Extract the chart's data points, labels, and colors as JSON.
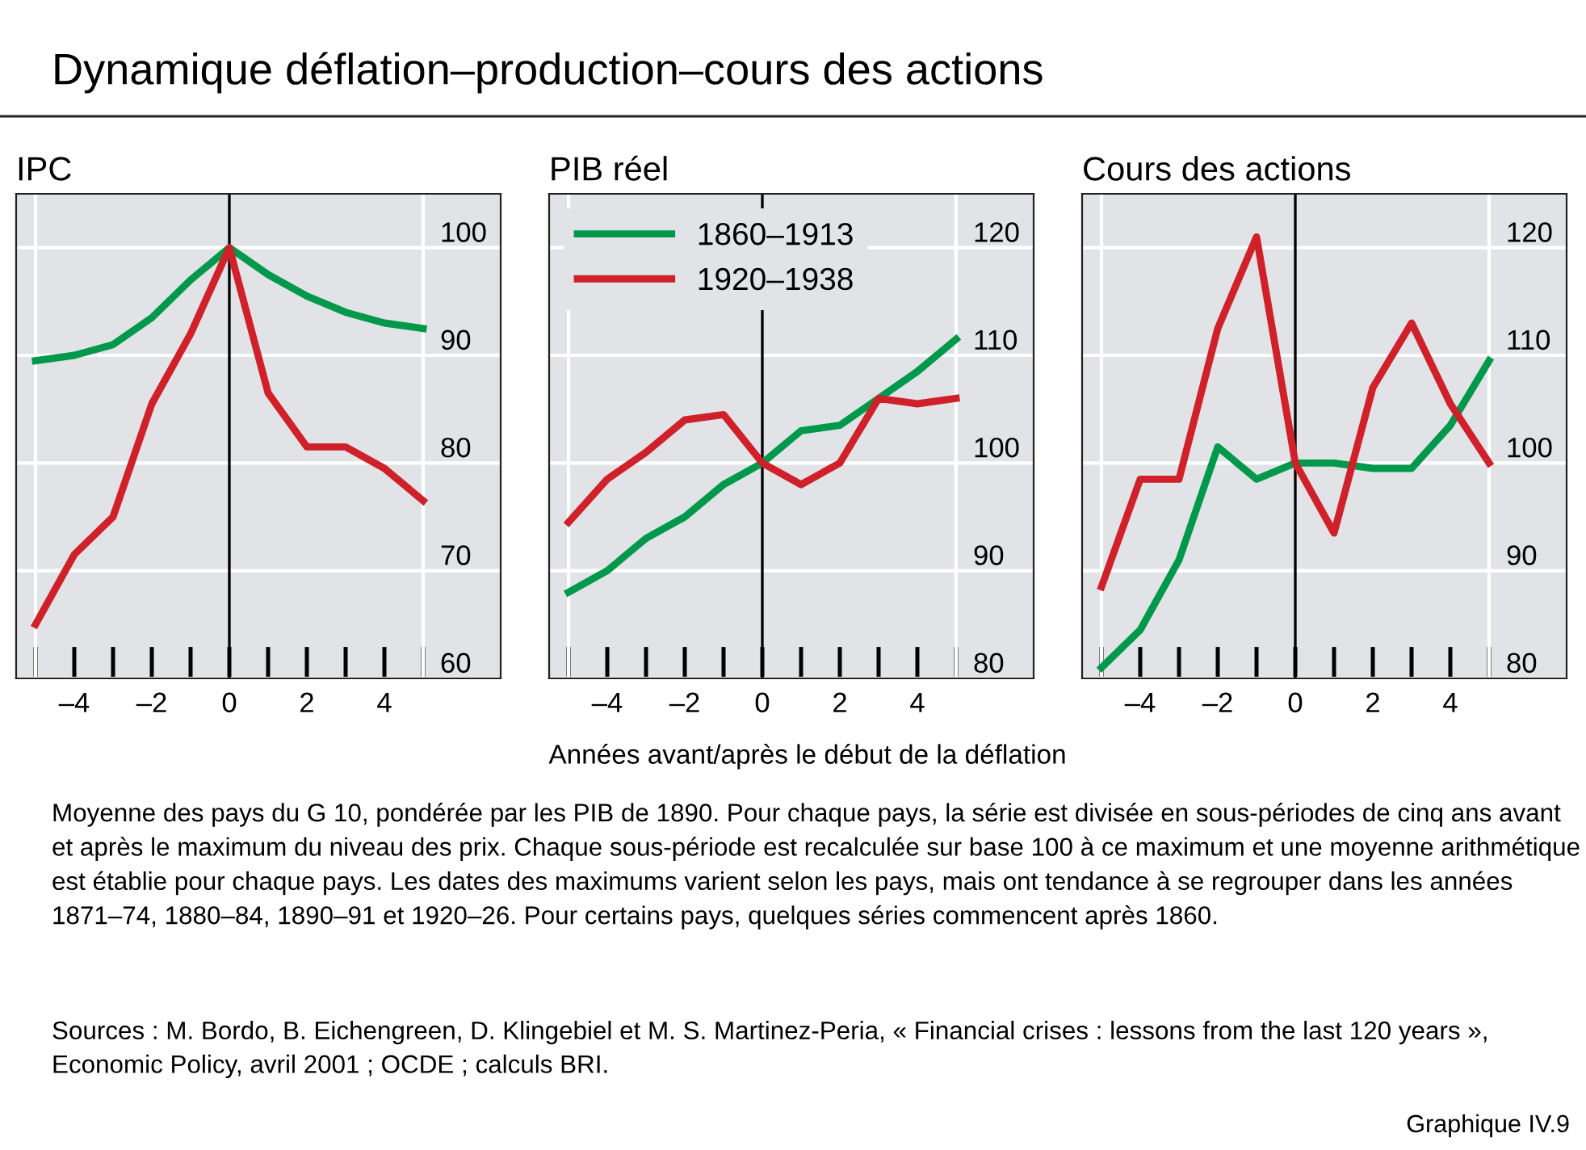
{
  "chart_data": [
    {
      "type": "line",
      "title": "IPC",
      "annotations": [
        "Dynamique déflation–production–cours des actions"
      ],
      "x": [
        -5,
        -4,
        -3,
        -2,
        -1,
        0,
        1,
        2,
        3,
        4,
        5
      ],
      "series": [
        {
          "color": "#00994c",
          "values": [
            89.5,
            90,
            91,
            93.5,
            97,
            100,
            97.5,
            95.5,
            94,
            93,
            92.5
          ]
        },
        {
          "color": "#d0202a",
          "values": [
            65,
            71.5,
            75,
            85.5,
            92,
            100,
            86.5,
            81.5,
            81.5,
            79.5,
            76.5
          ]
        }
      ],
      "xlim": [
        -5.5,
        7
      ],
      "ylim": [
        60,
        105
      ],
      "yticks": [
        60,
        70,
        80,
        90,
        100
      ],
      "xticks": [
        {
          "value": -4,
          "label": "–4"
        },
        {
          "value": -2,
          "label": "–2"
        },
        {
          "value": 0,
          "label": "0"
        },
        {
          "value": 2,
          "label": "2"
        },
        {
          "value": 4,
          "label": "4"
        }
      ],
      "ref_lines": [
        {
          "axis": "x",
          "value": -5,
          "color": "#ffffff"
        },
        {
          "axis": "x",
          "value": 5,
          "color": "#ffffff"
        },
        {
          "axis": "x",
          "value": 0,
          "color": "#000000"
        }
      ],
      "grid": "y",
      "legend": false,
      "line_style": "solid",
      "marker": "none"
    },
    {
      "type": "line",
      "title": "PIB réel",
      "xlabel": "Années avant/après le début de la déflation",
      "x": [
        -5,
        -4,
        -3,
        -2,
        -1,
        0,
        1,
        2,
        3,
        4,
        5
      ],
      "series": [
        {
          "name": "1860–1913",
          "color": "#00994c",
          "values": [
            88,
            90,
            93,
            95,
            98,
            100,
            103,
            103.5,
            106,
            108.5,
            111.5
          ]
        },
        {
          "name": "1920–1938",
          "color": "#d0202a",
          "values": [
            94.5,
            98.5,
            101,
            104,
            104.5,
            100,
            98,
            100,
            106,
            105.5,
            106
          ]
        }
      ],
      "xlim": [
        -5.5,
        7
      ],
      "ylim": [
        80,
        125
      ],
      "yticks": [
        80,
        90,
        100,
        110,
        120
      ],
      "xticks": [
        {
          "value": -4,
          "label": "–4"
        },
        {
          "value": -2,
          "label": "–2"
        },
        {
          "value": 0,
          "label": "0"
        },
        {
          "value": 2,
          "label": "2"
        },
        {
          "value": 4,
          "label": "4"
        }
      ],
      "ref_lines": [
        {
          "axis": "x",
          "value": -5,
          "color": "#ffffff"
        },
        {
          "axis": "x",
          "value": 5,
          "color": "#ffffff"
        },
        {
          "axis": "x",
          "value": 0,
          "color": "#000000"
        }
      ],
      "grid": "y",
      "legend": "top left",
      "line_style": "solid",
      "marker": "none"
    },
    {
      "type": "line",
      "title": "Cours des actions",
      "annotations": [
        "Moyenne des pays du G 10, pondérée par les PIB de 1890. Pour chaque pays, la série est divisée en sous-périodes de cinq ans avant et après le maximum du niveau des prix. Chaque sous-période est recalculée sur base 100 à ce maximum et une moyenne arithmétique est établie pour chaque pays. Les dates des maximums varient selon les pays, mais ont tendance à se regrouper dans les années 1871–74, 1880–84, 1890–91 et 1920–26. Pour certains pays, quelques séries commencent après 1860.",
        "Sources : M. Bordo, B. Eichengreen, D. Klingebiel et M. S. Martinez-Peria, « Financial crises : lessons from the last 120 years », Economic Policy, avril 2001 ; OCDE ; calculs BRI.",
        "Graphique IV.9"
      ],
      "x": [
        -5,
        -4,
        -3,
        -2,
        -1,
        0,
        1,
        2,
        3,
        4,
        5
      ],
      "series": [
        {
          "color": "#00994c",
          "values": [
            81,
            84.5,
            91,
            101.5,
            98.5,
            100,
            100,
            99.5,
            99.5,
            103.5,
            109.5
          ]
        },
        {
          "color": "#d0202a",
          "values": [
            88.5,
            98.5,
            98.5,
            112.5,
            121,
            100,
            93.5,
            107,
            113,
            105.5,
            100
          ]
        }
      ],
      "xlim": [
        -5.5,
        7
      ],
      "ylim": [
        80,
        125
      ],
      "yticks": [
        80,
        90,
        100,
        110,
        120
      ],
      "xticks": [
        {
          "value": -4,
          "label": "–4"
        },
        {
          "value": -2,
          "label": "–2"
        },
        {
          "value": 0,
          "label": "0"
        },
        {
          "value": 2,
          "label": "2"
        },
        {
          "value": 4,
          "label": "4"
        }
      ],
      "ref_lines": [
        {
          "axis": "x",
          "value": -5,
          "color": "#ffffff"
        },
        {
          "axis": "x",
          "value": 5,
          "color": "#ffffff"
        },
        {
          "axis": "x",
          "value": 0,
          "color": "#000000"
        }
      ],
      "grid": "y",
      "legend": false,
      "line_style": "solid",
      "marker": "none"
    }
  ]
}
